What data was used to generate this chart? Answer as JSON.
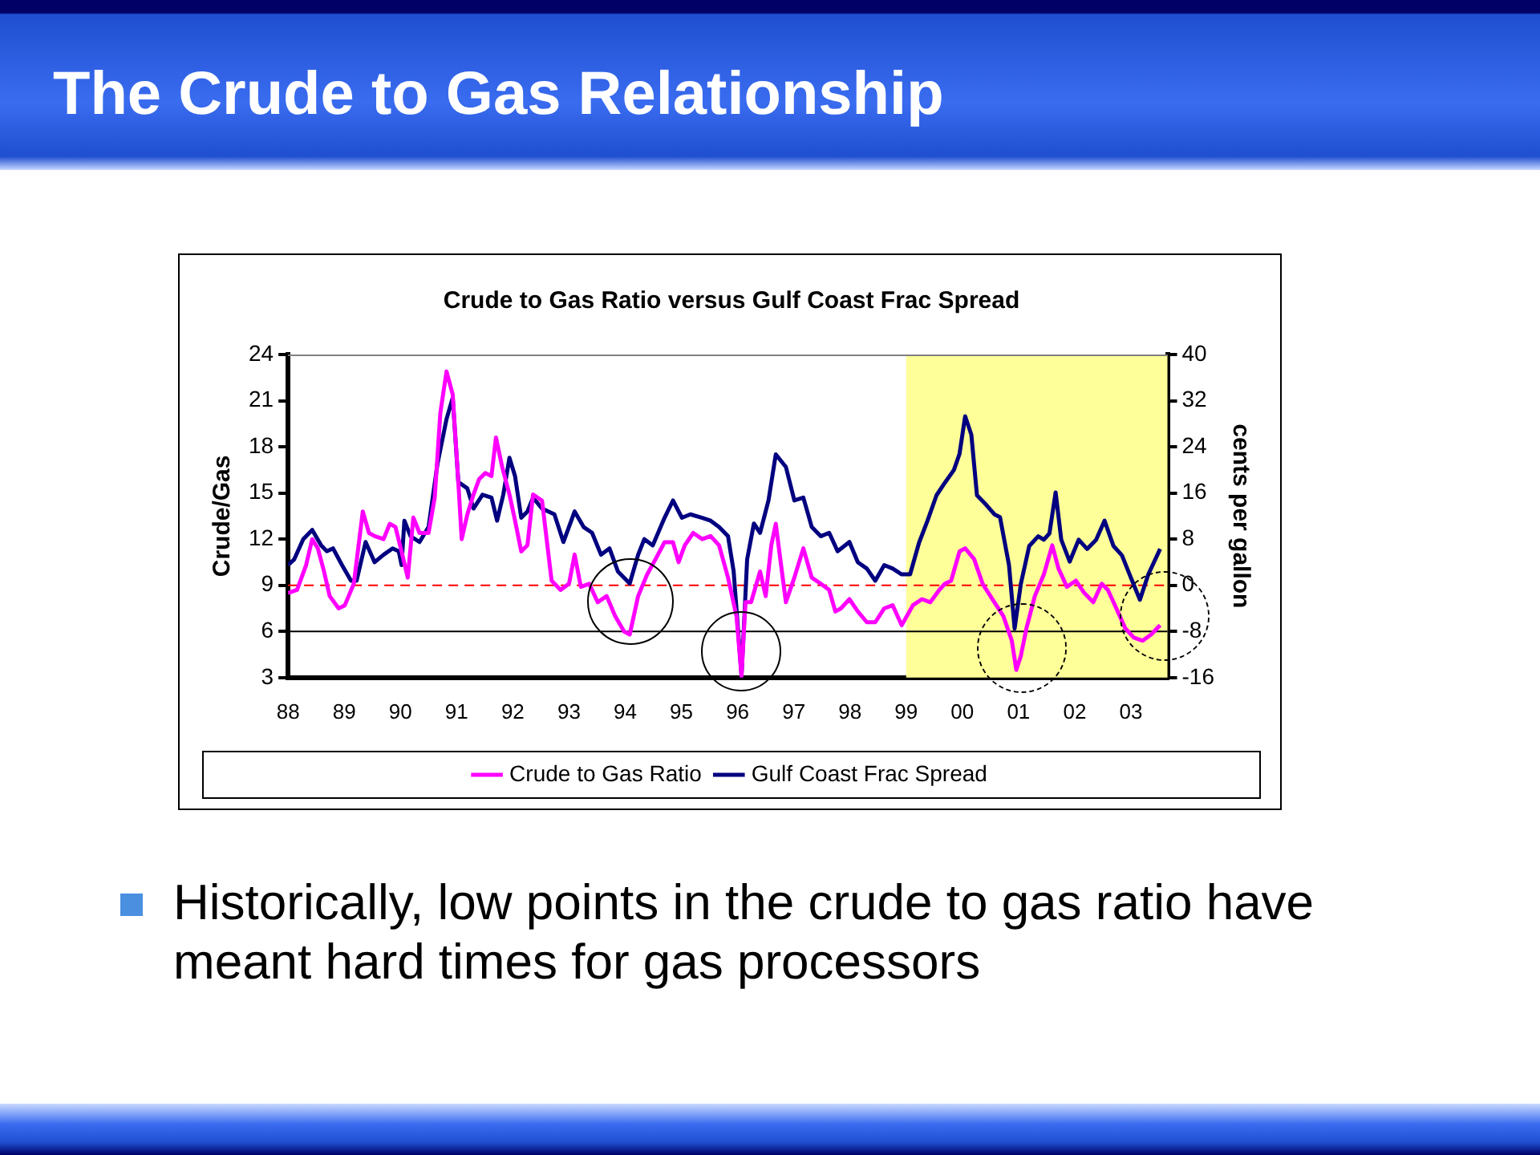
{
  "chart_data": {
    "type": "line",
    "title": "The Crude to Gas Relationship",
    "subtitle": "Crude to Gas Ratio versus Gulf Coast Frac Spread",
    "ylabel": "Crude/Gas",
    "y2label": "cents per gallon",
    "xlim": [
      1988,
      2003.65
    ],
    "xticks": [
      {
        "value": 1988,
        "label": "88"
      },
      {
        "value": 1989,
        "label": "89"
      },
      {
        "value": 1990,
        "label": "90"
      },
      {
        "value": 1991,
        "label": "91"
      },
      {
        "value": 1992,
        "label": "92"
      },
      {
        "value": 1993,
        "label": "93"
      },
      {
        "value": 1994,
        "label": "94"
      },
      {
        "value": 1995,
        "label": "95"
      },
      {
        "value": 1996,
        "label": "96"
      },
      {
        "value": 1997,
        "label": "97"
      },
      {
        "value": 1998,
        "label": "98"
      },
      {
        "value": 1999,
        "label": "99"
      },
      {
        "value": 2000,
        "label": "00"
      },
      {
        "value": 2001,
        "label": "01"
      },
      {
        "value": 2002,
        "label": "02"
      },
      {
        "value": 2003,
        "label": "03"
      }
    ],
    "ylim": [
      3,
      24
    ],
    "yticks": [
      3,
      6,
      9,
      12,
      15,
      18,
      21,
      24
    ],
    "y2lim": [
      -16,
      40
    ],
    "y2ticks": [
      -16,
      -8,
      0,
      8,
      16,
      24,
      32,
      40
    ],
    "grid": false,
    "legend": "bottom",
    "marker": "none",
    "line_style": "solid",
    "series": [
      {
        "name": "Crude to Gas Ratio",
        "color": "#ff00ff",
        "x": [
          1988.0,
          1988.16,
          1988.32,
          1988.43,
          1988.53,
          1988.64,
          1988.74,
          1988.9,
          1989.01,
          1989.17,
          1989.33,
          1989.44,
          1989.54,
          1989.7,
          1989.81,
          1989.91,
          1990.02,
          1990.13,
          1990.23,
          1990.34,
          1990.5,
          1990.61,
          1990.71,
          1990.82,
          1990.93,
          1991.03,
          1991.09,
          1991.19,
          1991.3,
          1991.4,
          1991.51,
          1991.62,
          1991.7,
          1991.81,
          1991.94,
          1992.04,
          1992.15,
          1992.26,
          1992.36,
          1992.52,
          1992.69,
          1992.85,
          1993.0,
          1993.1,
          1993.21,
          1993.36,
          1993.51,
          1993.67,
          1993.82,
          1993.98,
          1994.08,
          1994.23,
          1994.39,
          1994.54,
          1994.7,
          1994.85,
          1994.95,
          1995.06,
          1995.21,
          1995.37,
          1995.52,
          1995.67,
          1995.83,
          1995.98,
          1996.07,
          1996.14,
          1996.24,
          1996.4,
          1996.5,
          1996.6,
          1996.68,
          1996.76,
          1996.86,
          1997.01,
          1997.17,
          1997.32,
          1997.48,
          1997.63,
          1997.74,
          1997.84,
          1997.99,
          1998.14,
          1998.3,
          1998.45,
          1998.61,
          1998.76,
          1998.92,
          1999.12,
          1999.28,
          1999.43,
          1999.59,
          1999.69,
          1999.8,
          1999.95,
          2000.05,
          2000.21,
          2000.36,
          2000.57,
          2000.73,
          2000.88,
          2000.96,
          2001.04,
          2001.14,
          2001.29,
          2001.45,
          2001.6,
          2001.71,
          2001.86,
          2002.02,
          2002.17,
          2002.33,
          2002.48,
          2002.59,
          2002.74,
          2002.9,
          2003.05,
          2003.21,
          2003.36,
          2003.52
        ],
        "values": [
          8.5,
          8.7,
          10.3,
          12,
          11.4,
          9.9,
          8.3,
          7.5,
          7.7,
          9.1,
          13.8,
          12.4,
          12.2,
          12,
          13,
          12.8,
          11.2,
          9.5,
          13.4,
          12.4,
          12.4,
          14.7,
          20.2,
          22.9,
          21.4,
          15.7,
          12,
          13.6,
          14.9,
          15.9,
          16.3,
          16.1,
          18.6,
          16.7,
          14.9,
          13.2,
          11.2,
          11.6,
          14.9,
          14.5,
          9.3,
          8.7,
          9.1,
          11,
          8.9,
          9.1,
          7.9,
          8.3,
          7.0,
          6.0,
          5.8,
          8.3,
          9.7,
          10.7,
          11.8,
          11.8,
          10.5,
          11.6,
          12.4,
          12,
          12.2,
          11.6,
          9.5,
          7,
          3.1,
          7.9,
          7.9,
          9.9,
          8.3,
          11.6,
          13,
          10.7,
          7.9,
          9.5,
          11.4,
          9.5,
          9.1,
          8.7,
          7.3,
          7.5,
          8.1,
          7.3,
          6.6,
          6.6,
          7.5,
          7.7,
          6.4,
          7.7,
          8.1,
          7.9,
          8.7,
          9.1,
          9.3,
          11.2,
          11.4,
          10.7,
          9.1,
          7.9,
          7.0,
          5.4,
          3.5,
          4.4,
          6.2,
          8.3,
          9.7,
          11.6,
          10.1,
          8.9,
          9.3,
          8.5,
          7.9,
          9.1,
          8.7,
          7.5,
          6.2,
          5.6,
          5.4,
          5.8,
          6.4
        ]
      },
      {
        "name": "Gulf Coast Frac Spread",
        "color": "#000080",
        "axis": "y2",
        "x": [
          1988.0,
          1988.11,
          1988.27,
          1988.43,
          1988.59,
          1988.69,
          1988.8,
          1988.96,
          1989.12,
          1989.22,
          1989.38,
          1989.54,
          1989.7,
          1989.86,
          1989.97,
          1990.02,
          1990.07,
          1990.18,
          1990.34,
          1990.5,
          1990.66,
          1990.82,
          1990.93,
          1991.03,
          1991.19,
          1991.3,
          1991.46,
          1991.62,
          1991.72,
          1991.83,
          1991.94,
          1992.04,
          1992.15,
          1992.26,
          1992.36,
          1992.52,
          1992.74,
          1992.9,
          1993.1,
          1993.26,
          1993.41,
          1993.57,
          1993.72,
          1993.87,
          1994.08,
          1994.23,
          1994.34,
          1994.49,
          1994.7,
          1994.85,
          1995.01,
          1995.16,
          1995.37,
          1995.52,
          1995.67,
          1995.83,
          1995.93,
          1996.07,
          1996.17,
          1996.29,
          1996.4,
          1996.55,
          1996.68,
          1996.86,
          1997.01,
          1997.17,
          1997.32,
          1997.48,
          1997.63,
          1997.78,
          1997.99,
          1998.14,
          1998.3,
          1998.45,
          1998.61,
          1998.76,
          1998.92,
          1999.07,
          1999.23,
          1999.38,
          1999.54,
          1999.69,
          1999.85,
          1999.95,
          2000.05,
          2000.16,
          2000.26,
          2000.42,
          2000.57,
          2000.67,
          2000.83,
          2000.93,
          2001.04,
          2001.19,
          2001.35,
          2001.45,
          2001.55,
          2001.66,
          2001.76,
          2001.91,
          2002.07,
          2002.22,
          2002.38,
          2002.53,
          2002.69,
          2002.84,
          2003.0,
          2003.16,
          2003.31,
          2003.52
        ],
        "values": [
          3.5,
          4.5,
          8,
          9.6,
          6.9,
          5.9,
          6.4,
          3.5,
          0.8,
          0.8,
          7.5,
          4,
          5.3,
          6.4,
          5.9,
          3.5,
          11.2,
          8.5,
          7.5,
          10.1,
          21.1,
          28.8,
          32.5,
          17.9,
          16.8,
          13.3,
          15.7,
          15.2,
          11.2,
          15.7,
          22.1,
          18.9,
          11.7,
          12.8,
          15.2,
          13.3,
          12.3,
          7.5,
          12.8,
          10.1,
          9.1,
          5.3,
          6.4,
          2.4,
          0.3,
          5.3,
          8,
          6.9,
          11.7,
          14.7,
          11.7,
          12.3,
          11.7,
          11.2,
          10.1,
          8.5,
          2.4,
          -15.7,
          4.5,
          10.7,
          9.1,
          14.7,
          22.7,
          20.5,
          14.7,
          15.2,
          10.1,
          8.5,
          9.1,
          5.9,
          7.5,
          4,
          2.9,
          0.8,
          3.5,
          2.9,
          1.9,
          1.9,
          7.4,
          11.2,
          15.6,
          17.8,
          20,
          22.8,
          29.3,
          26.1,
          15.6,
          14,
          12.3,
          11.8,
          3.5,
          -7.5,
          0.2,
          6.8,
          8.5,
          7.9,
          9,
          16.1,
          7.9,
          4.1,
          7.9,
          6.3,
          7.9,
          11.2,
          6.8,
          5.2,
          1.3,
          -2.5,
          1.9,
          6.3
        ]
      }
    ],
    "ref_lines": [
      {
        "axis": "y",
        "value": 9,
        "color": "#ff0000",
        "line_style": "dashed"
      },
      {
        "axis": "y",
        "value": 6,
        "color": "#000000",
        "line_style": "solid"
      }
    ],
    "bands": [
      {
        "axis": "x",
        "from": 1999,
        "to": 2003.65,
        "color": "#ffff99"
      }
    ],
    "annotations": [
      "Historically, low points in the crude to gas ratio have meant hard times for gas processors"
    ]
  }
}
